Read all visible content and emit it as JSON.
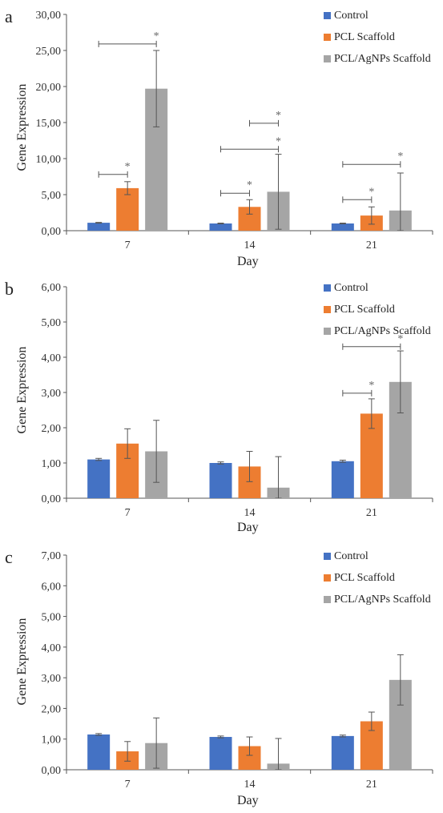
{
  "chart_data": [
    {
      "panel": "a",
      "type": "bar",
      "xlabel": "Day",
      "ylabel": "Gene Expression",
      "categories": [
        "7",
        "14",
        "21"
      ],
      "ylim": [
        0,
        30
      ],
      "yticks": [
        "0,00",
        "5,00",
        "10,00",
        "15,00",
        "20,00",
        "25,00",
        "30,00"
      ],
      "series": [
        {
          "name": "Control",
          "color": "#4472c4",
          "values": [
            1.1,
            1.0,
            1.0
          ],
          "errors": [
            0.05,
            0.05,
            0.05
          ]
        },
        {
          "name": "PCL Scaffold",
          "color": "#ed7d31",
          "values": [
            5.9,
            3.3,
            2.1
          ],
          "errors": [
            0.9,
            1.0,
            1.2
          ]
        },
        {
          "name": "PCL/AgNPs Scaffold",
          "color": "#a5a5a5",
          "values": [
            19.7,
            5.4,
            2.8
          ],
          "errors": [
            5.3,
            5.2,
            5.2
          ]
        }
      ],
      "significance": [
        {
          "from_category": 0,
          "from_series": 0,
          "to_series": 1,
          "value": 7.8,
          "label": "*"
        },
        {
          "from_category": 0,
          "from_series": 0,
          "to_series": 2,
          "value": 25.9,
          "label": "*"
        },
        {
          "from_category": 1,
          "from_series": 0,
          "to_series": 1,
          "value": 5.2,
          "label": "*"
        },
        {
          "from_category": 1,
          "from_series": 0,
          "to_series": 2,
          "value": 11.3,
          "label": "*"
        },
        {
          "from_category": 1,
          "from_series": 1,
          "to_series": 2,
          "value": 14.9,
          "label": "*"
        },
        {
          "from_category": 2,
          "from_series": 0,
          "to_series": 1,
          "value": 4.3,
          "label": "*"
        },
        {
          "from_category": 2,
          "from_series": 0,
          "to_series": 2,
          "value": 9.2,
          "label": "*"
        }
      ]
    },
    {
      "panel": "b",
      "type": "bar",
      "xlabel": "Day",
      "ylabel": "Gene Expression",
      "categories": [
        "7",
        "14",
        "21"
      ],
      "ylim": [
        0,
        6
      ],
      "yticks": [
        "0,00",
        "1,00",
        "2,00",
        "3,00",
        "4,00",
        "5,00",
        "6,00"
      ],
      "series": [
        {
          "name": "Control",
          "color": "#4472c4",
          "values": [
            1.1,
            1.0,
            1.05
          ],
          "errors": [
            0.03,
            0.03,
            0.03
          ]
        },
        {
          "name": "PCL Scaffold",
          "color": "#ed7d31",
          "values": [
            1.55,
            0.9,
            2.4
          ],
          "errors": [
            0.42,
            0.43,
            0.42
          ]
        },
        {
          "name": "PCL/AgNPs Scaffold",
          "color": "#a5a5a5",
          "values": [
            1.33,
            0.3,
            3.3
          ],
          "errors": [
            0.88,
            0.88,
            0.88
          ]
        }
      ],
      "significance": [
        {
          "from_category": 2,
          "from_series": 0,
          "to_series": 1,
          "value": 2.98,
          "label": "*"
        },
        {
          "from_category": 2,
          "from_series": 0,
          "to_series": 2,
          "value": 4.3,
          "label": "*"
        }
      ]
    },
    {
      "panel": "c",
      "type": "bar",
      "xlabel": "Day",
      "ylabel": "Gene Expression",
      "categories": [
        "7",
        "14",
        "21"
      ],
      "ylim": [
        0,
        7
      ],
      "yticks": [
        "0,00",
        "1,00",
        "2,00",
        "3,00",
        "4,00",
        "5,00",
        "6,00",
        "7,00"
      ],
      "series": [
        {
          "name": "Control",
          "color": "#4472c4",
          "values": [
            1.15,
            1.07,
            1.1
          ],
          "errors": [
            0.03,
            0.03,
            0.03
          ]
        },
        {
          "name": "PCL Scaffold",
          "color": "#ed7d31",
          "values": [
            0.6,
            0.77,
            1.58
          ],
          "errors": [
            0.32,
            0.3,
            0.3
          ]
        },
        {
          "name": "PCL/AgNPs Scaffold",
          "color": "#a5a5a5",
          "values": [
            0.87,
            0.2,
            2.93
          ],
          "errors": [
            0.82,
            0.82,
            0.82
          ]
        }
      ],
      "significance": []
    }
  ]
}
